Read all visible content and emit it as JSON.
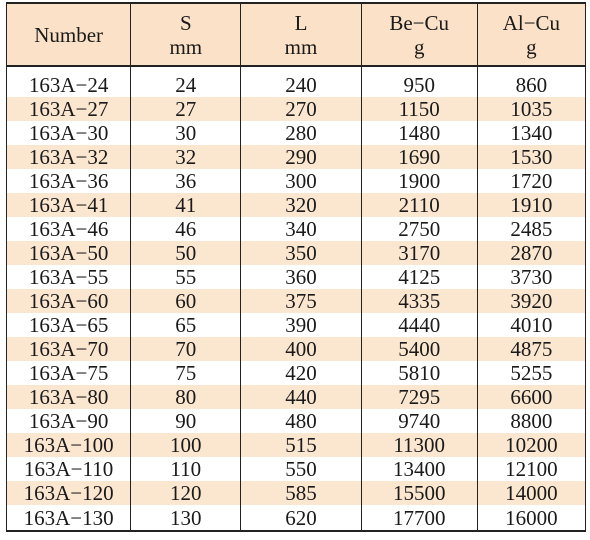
{
  "headers": [
    {
      "line1": "Number",
      "line2": ""
    },
    {
      "line1": "S",
      "line2": "mm"
    },
    {
      "line1": "L",
      "line2": "mm"
    },
    {
      "line1": "Be−Cu",
      "line2": "g"
    },
    {
      "line1": "Al−Cu",
      "line2": "g"
    }
  ],
  "rows": [
    [
      "163A−24",
      "24",
      "240",
      "950",
      "860"
    ],
    [
      "163A−27",
      "27",
      "270",
      "1150",
      "1035"
    ],
    [
      "163A−30",
      "30",
      "280",
      "1480",
      "1340"
    ],
    [
      "163A−32",
      "32",
      "290",
      "1690",
      "1530"
    ],
    [
      "163A−36",
      "36",
      "300",
      "1900",
      "1720"
    ],
    [
      "163A−41",
      "41",
      "320",
      "2110",
      "1910"
    ],
    [
      "163A−46",
      "46",
      "340",
      "2750",
      "2485"
    ],
    [
      "163A−50",
      "50",
      "350",
      "3170",
      "2870"
    ],
    [
      "163A−55",
      "55",
      "360",
      "4125",
      "3730"
    ],
    [
      "163A−60",
      "60",
      "375",
      "4335",
      "3920"
    ],
    [
      "163A−65",
      "65",
      "390",
      "4440",
      "4010"
    ],
    [
      "163A−70",
      "70",
      "400",
      "5400",
      "4875"
    ],
    [
      "163A−75",
      "75",
      "420",
      "5810",
      "5255"
    ],
    [
      "163A−80",
      "80",
      "440",
      "7295",
      "6600"
    ],
    [
      "163A−90",
      "90",
      "480",
      "9740",
      "8800"
    ],
    [
      "163A−100",
      "100",
      "515",
      "11300",
      "10200"
    ],
    [
      "163A−110",
      "110",
      "550",
      "13400",
      "12100"
    ],
    [
      "163A−120",
      "120",
      "585",
      "15500",
      "14000"
    ],
    [
      "163A−130",
      "130",
      "620",
      "17700",
      "16000"
    ]
  ]
}
